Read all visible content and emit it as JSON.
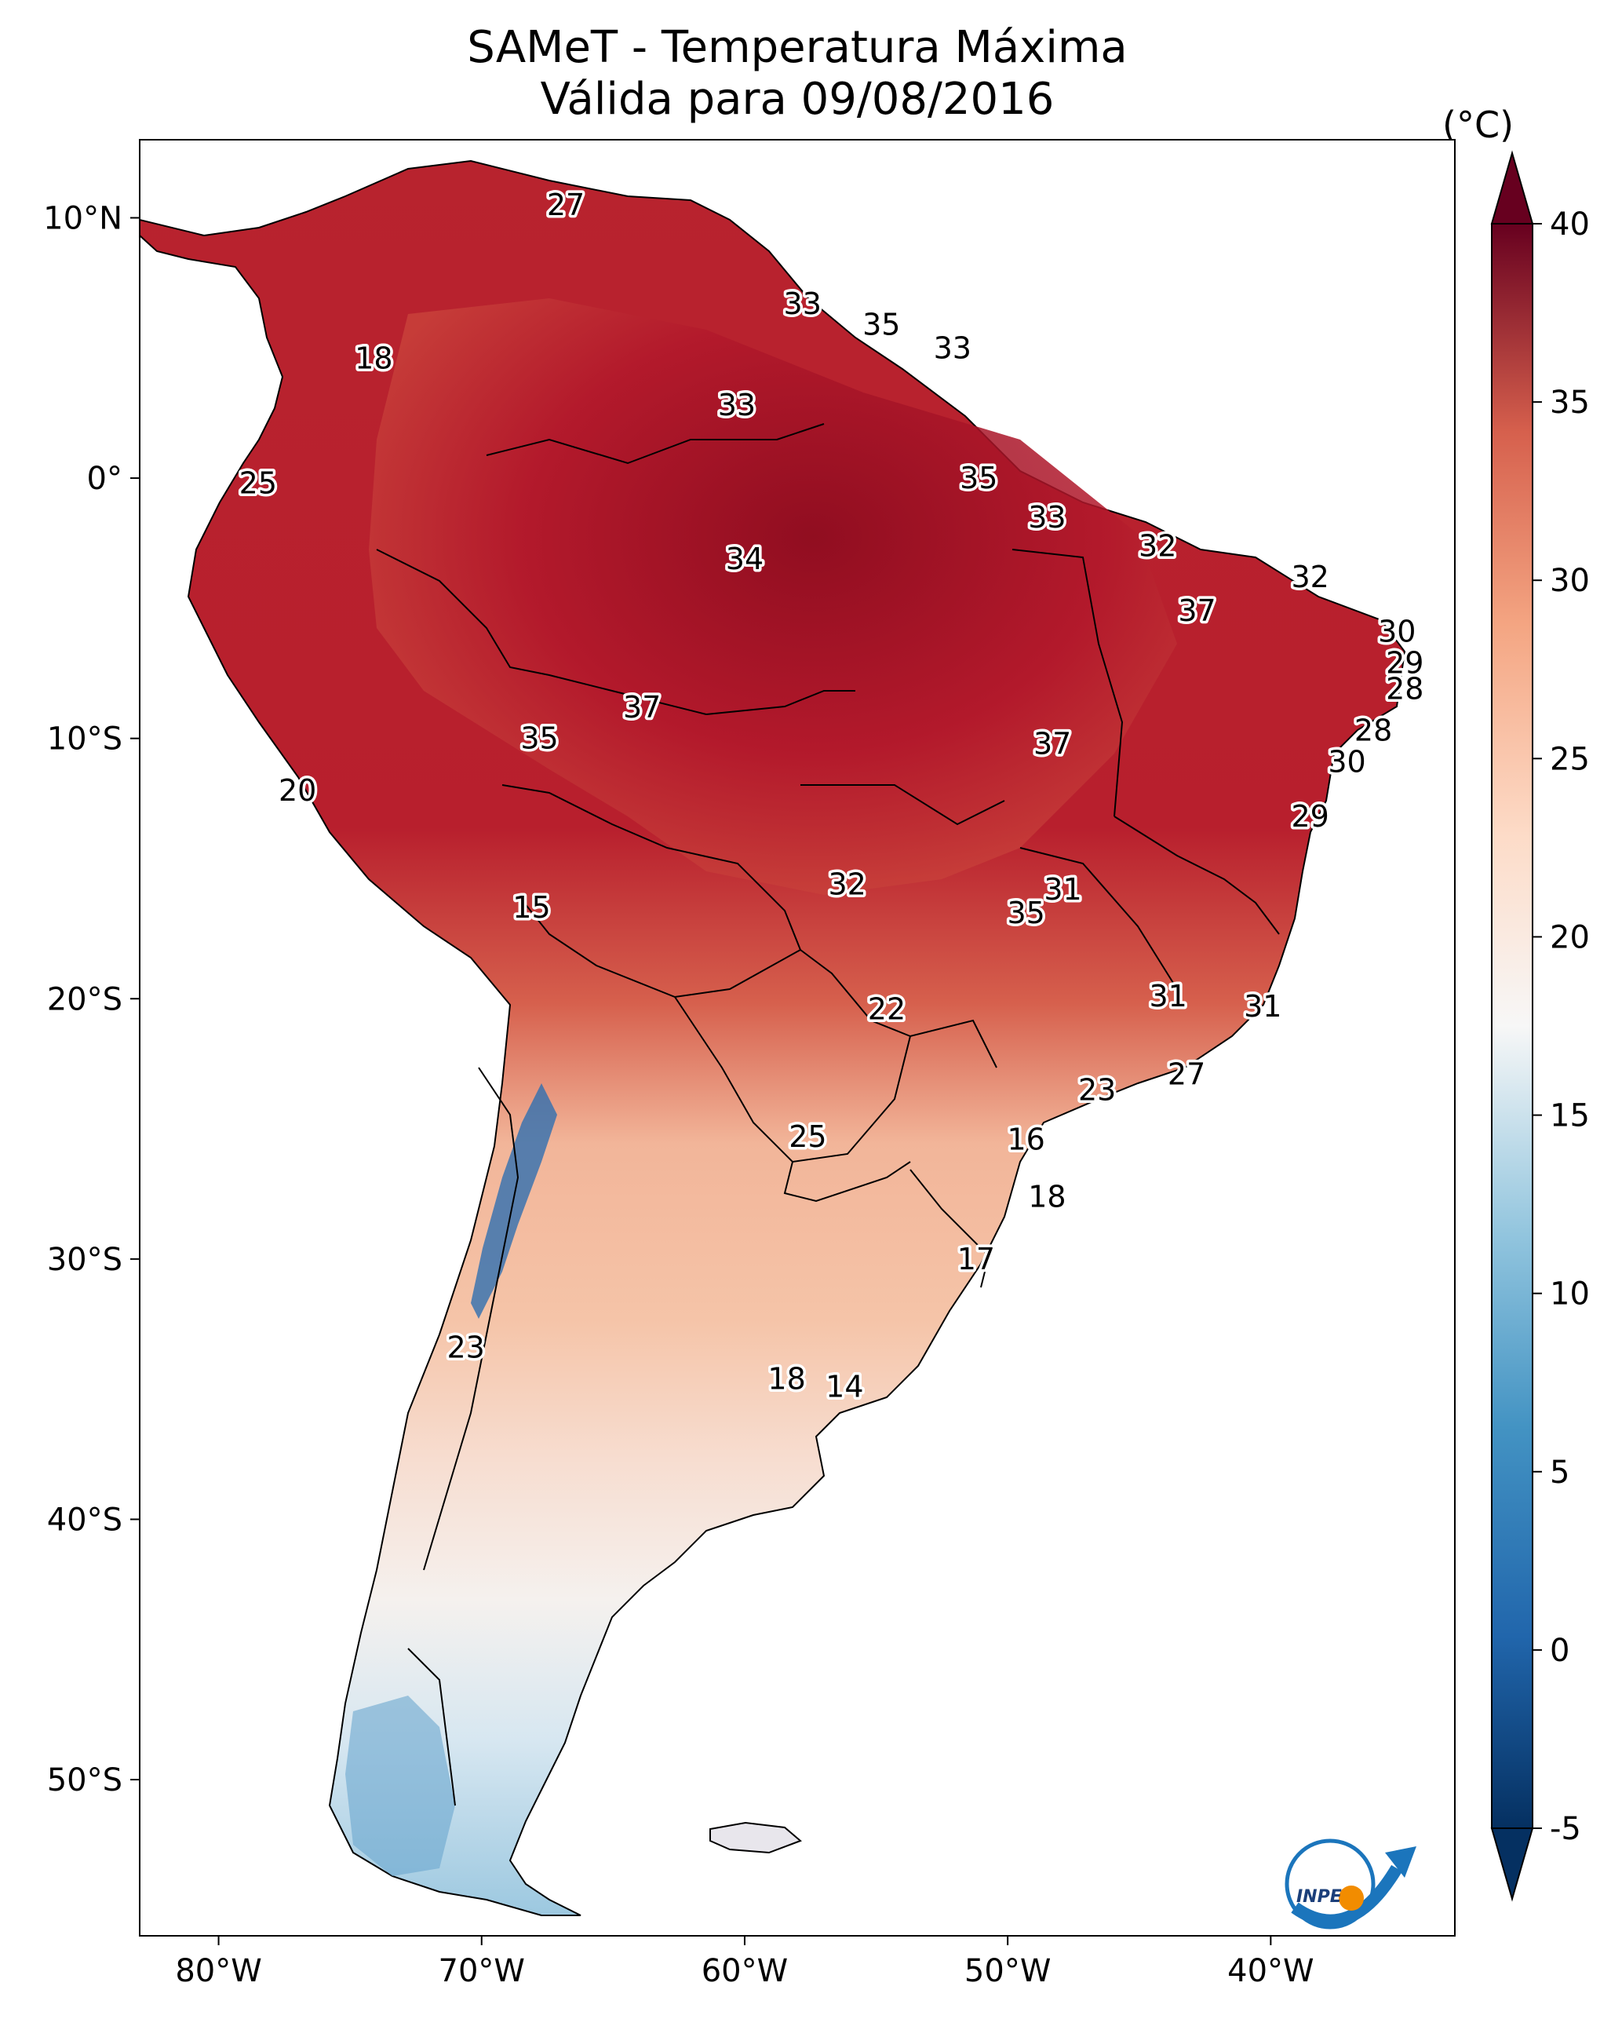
{
  "title": {
    "line1": "SAMeT - Temperatura Máxima",
    "line2": "Válida para 09/08/2016"
  },
  "colorbar": {
    "unit": "(°C)",
    "min": -5,
    "max": 40,
    "ticks": [
      "40",
      "35",
      "30",
      "25",
      "20",
      "15",
      "10",
      "5",
      "0",
      "-5"
    ],
    "tick_values": [
      40,
      35,
      30,
      25,
      20,
      15,
      10,
      5,
      0,
      -5
    ]
  },
  "axes": {
    "lon_range": [
      -83,
      -33
    ],
    "lat_range": [
      -56,
      13
    ],
    "lon_ticks": [
      {
        "label": "80°W",
        "value": -80
      },
      {
        "label": "70°W",
        "value": -70
      },
      {
        "label": "60°W",
        "value": -60
      },
      {
        "label": "50°W",
        "value": -50
      },
      {
        "label": "40°W",
        "value": -40
      }
    ],
    "lat_ticks": [
      {
        "label": "10°N",
        "value": 10
      },
      {
        "label": "0°",
        "value": 0
      },
      {
        "label": "10°S",
        "value": -10
      },
      {
        "label": "20°S",
        "value": -20
      },
      {
        "label": "30°S",
        "value": -30
      },
      {
        "label": "40°S",
        "value": -40
      },
      {
        "label": "50°S",
        "value": -50
      }
    ]
  },
  "city_values": [
    {
      "label": "27",
      "lon": -66.8,
      "lat": 10.5
    },
    {
      "label": "33",
      "lon": -57.8,
      "lat": 6.7
    },
    {
      "label": "35",
      "lon": -54.8,
      "lat": 5.9
    },
    {
      "label": "33",
      "lon": -52.1,
      "lat": 5.0
    },
    {
      "label": "18",
      "lon": -74.1,
      "lat": 4.6
    },
    {
      "label": "33",
      "lon": -60.3,
      "lat": 2.8
    },
    {
      "label": "25",
      "lon": -78.5,
      "lat": -0.2
    },
    {
      "label": "35",
      "lon": -51.1,
      "lat": 0.0
    },
    {
      "label": "33",
      "lon": -48.5,
      "lat": -1.5
    },
    {
      "label": "32",
      "lon": -44.3,
      "lat": -2.6
    },
    {
      "label": "34",
      "lon": -60.0,
      "lat": -3.1
    },
    {
      "label": "32",
      "lon": -38.5,
      "lat": -3.8
    },
    {
      "label": "37",
      "lon": -42.8,
      "lat": -5.1
    },
    {
      "label": "30",
      "lon": -35.2,
      "lat": -5.9
    },
    {
      "label": "29",
      "lon": -34.9,
      "lat": -7.1
    },
    {
      "label": "28",
      "lon": -34.9,
      "lat": -8.1
    },
    {
      "label": "37",
      "lon": -63.9,
      "lat": -8.8
    },
    {
      "label": "35",
      "lon": -67.8,
      "lat": -10.0
    },
    {
      "label": "37",
      "lon": -48.3,
      "lat": -10.2
    },
    {
      "label": "28",
      "lon": -36.1,
      "lat": -9.7
    },
    {
      "label": "30",
      "lon": -37.1,
      "lat": -10.9
    },
    {
      "label": "20",
      "lon": -77.0,
      "lat": -12.0
    },
    {
      "label": "29",
      "lon": -38.5,
      "lat": -13.0
    },
    {
      "label": "15",
      "lon": -68.1,
      "lat": -16.5
    },
    {
      "label": "32",
      "lon": -56.1,
      "lat": -15.6
    },
    {
      "label": "31",
      "lon": -47.9,
      "lat": -15.8
    },
    {
      "label": "35",
      "lon": -49.3,
      "lat": -16.7
    },
    {
      "label": "31",
      "lon": -43.9,
      "lat": -19.9
    },
    {
      "label": "31",
      "lon": -40.3,
      "lat": -20.3
    },
    {
      "label": "22",
      "lon": -54.6,
      "lat": -20.4
    },
    {
      "label": "27",
      "lon": -43.2,
      "lat": -22.9
    },
    {
      "label": "23",
      "lon": -46.6,
      "lat": -23.5
    },
    {
      "label": "25",
      "lon": -57.6,
      "lat": -25.3
    },
    {
      "label": "16",
      "lon": -49.3,
      "lat": -25.4
    },
    {
      "label": "18",
      "lon": -48.5,
      "lat": -27.6
    },
    {
      "label": "17",
      "lon": -51.2,
      "lat": -30.0
    },
    {
      "label": "23",
      "lon": -70.6,
      "lat": -33.4
    },
    {
      "label": "18",
      "lon": -58.4,
      "lat": -34.6
    },
    {
      "label": "14",
      "lon": -56.2,
      "lat": -34.9
    }
  ]
}
